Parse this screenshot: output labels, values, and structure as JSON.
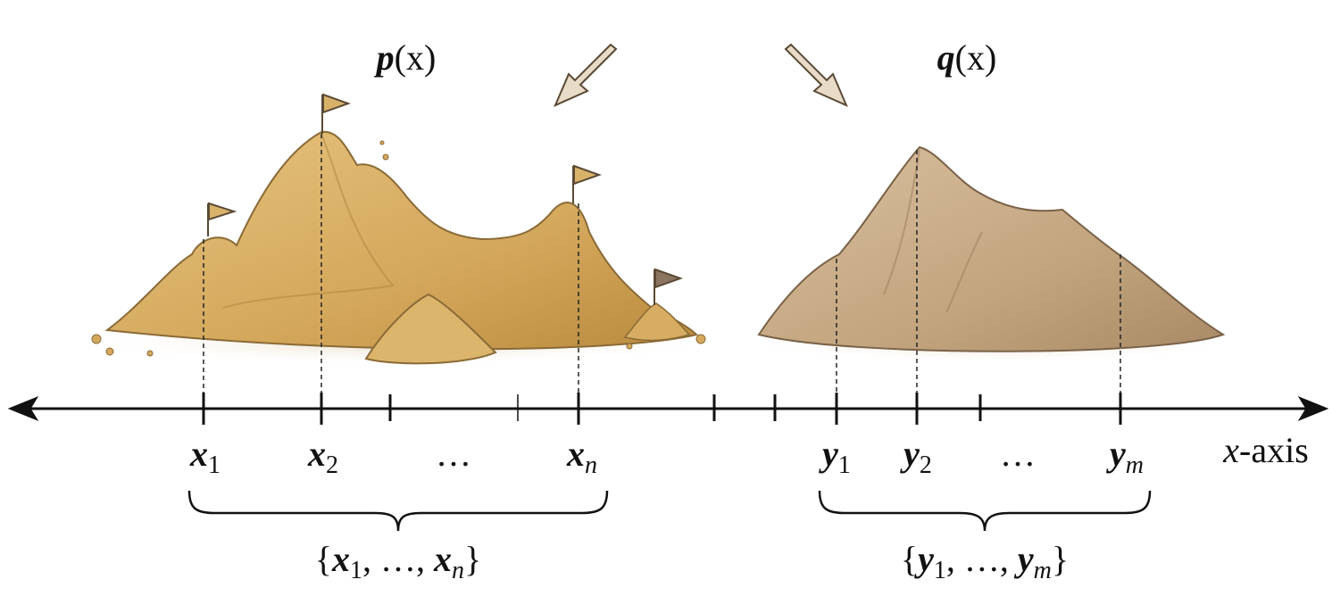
{
  "distributions": [
    {
      "label": {
        "symbol": "p",
        "argument": "(x)"
      },
      "points": [
        {
          "base": "x",
          "sub": "1"
        },
        {
          "base": "x",
          "sub": "2"
        },
        {
          "ellipsis": "…"
        },
        {
          "base": "x",
          "sub": "n"
        }
      ],
      "set": {
        "open": "{",
        "first": {
          "base": "x",
          "sub": "1"
        },
        "separator": ", …, ",
        "last": {
          "base": "x",
          "sub": "n"
        },
        "close": "}"
      }
    },
    {
      "label": {
        "symbol": "q",
        "argument": "(x)"
      },
      "points": [
        {
          "base": "y",
          "sub": "1"
        },
        {
          "base": "y",
          "sub": "2"
        },
        {
          "ellipsis": "…"
        },
        {
          "base": "y",
          "sub": "m"
        }
      ],
      "set": {
        "open": "{",
        "first": {
          "base": "y",
          "sub": "1"
        },
        "separator": ", …, ",
        "last": {
          "base": "y",
          "sub": "m"
        },
        "close": "}"
      }
    }
  ],
  "axis": {
    "variable": "x",
    "suffix": "-axis"
  }
}
